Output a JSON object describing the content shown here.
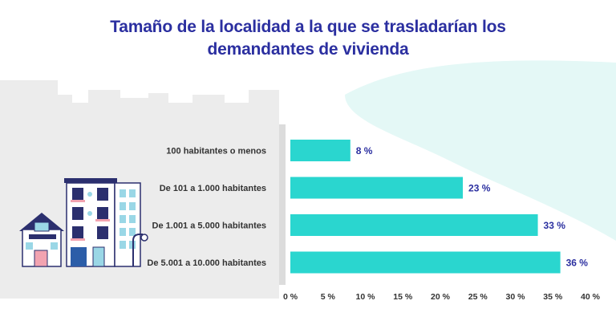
{
  "title": {
    "line1": "Tamaño de la localidad a la que se trasladarían los",
    "line2": "demandantes de vivienda"
  },
  "colors": {
    "bar": "#2ad6cf",
    "title": "#2b2fa0",
    "value_label": "#2b2fa0",
    "background_shape": "#ececec",
    "wave": "#e4f8f6"
  },
  "chart_data": {
    "type": "bar",
    "orientation": "horizontal",
    "title": "Tamaño de la localidad a la que se trasladarían los demandantes de vivienda",
    "categories": [
      "100 habitantes o menos",
      "De 101 a 1.000 habitantes",
      "De 1.001 a 5.000 habitantes",
      "De 5.001 a 10.000 habitantes"
    ],
    "values": [
      8,
      23,
      33,
      36
    ],
    "value_labels": [
      "8 %",
      "23 %",
      "33 %",
      "36 %"
    ],
    "xlim": [
      0,
      40
    ],
    "xticks": [
      0,
      5,
      10,
      15,
      20,
      25,
      30,
      35,
      40
    ],
    "xtick_labels": [
      "0 %",
      "5 %",
      "10 %",
      "15 %",
      "20 %",
      "25 %",
      "30 %",
      "35 %",
      "40 %"
    ],
    "xlabel": "",
    "ylabel": "",
    "grid": false
  }
}
